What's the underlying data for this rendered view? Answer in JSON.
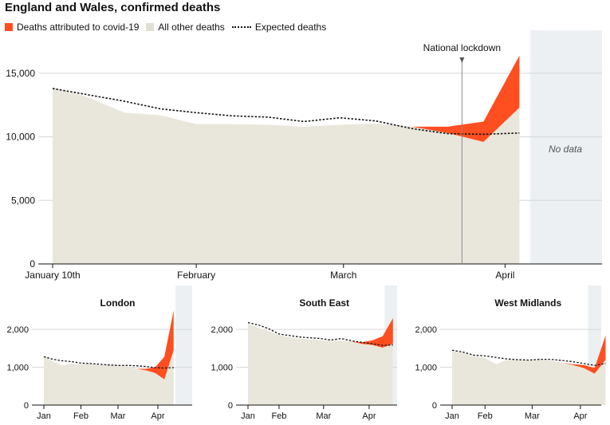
{
  "title": "England and Wales, confirmed deaths",
  "legend": {
    "covid": "Deaths attributed to covid-19",
    "other": "All other deaths",
    "expected": "Expected deaths"
  },
  "colors": {
    "covid": "#ff4e1f",
    "other": "#e9e7dc",
    "nodata": "#edf0f3",
    "grid": "#d6d6d6",
    "axis": "#121212"
  },
  "annotations": {
    "lockdown": "National lockdown",
    "nodata": "No data"
  },
  "chart_data": [
    {
      "type": "area",
      "title": "England and Wales, confirmed deaths",
      "x": [
        "Jan 10",
        "Jan 17",
        "Jan 24",
        "Jan 31",
        "Feb 7",
        "Feb 14",
        "Feb 21",
        "Feb 28",
        "Mar 6",
        "Mar 13",
        "Mar 20",
        "Mar 27",
        "Apr 3",
        "Apr 10"
      ],
      "xticks": [
        {
          "x": 0,
          "label": "January 10th"
        },
        {
          "x": 4,
          "label": "February"
        },
        {
          "x": 8.1,
          "label": "March"
        },
        {
          "x": 12.6,
          "label": "April"
        }
      ],
      "series": [
        {
          "name": "All other deaths",
          "values": [
            13900,
            13100,
            11900,
            11700,
            11000,
            11000,
            10950,
            10800,
            10950,
            11050,
            10800,
            10300,
            9600,
            12300
          ]
        },
        {
          "name": "Deaths attributed to covid-19",
          "values": [
            0,
            0,
            0,
            0,
            0,
            0,
            0,
            0,
            0,
            0,
            0,
            500,
            1600,
            4100
          ]
        },
        {
          "name": "Expected deaths",
          "values": [
            13800,
            13300,
            12800,
            12200,
            11900,
            11650,
            11550,
            11200,
            11500,
            11250,
            10650,
            10250,
            10200,
            10300
          ]
        }
      ],
      "ylim": [
        0,
        17000
      ],
      "yticks": [
        0,
        5000,
        10000,
        15000
      ],
      "lockdown_x": 11.4,
      "nodata_start": 13.3,
      "xmax": 15.3
    },
    {
      "type": "area",
      "title": "London",
      "x": [
        "Jan 3",
        "Jan 10",
        "Jan 17",
        "Jan 24",
        "Jan 31",
        "Feb 7",
        "Feb 14",
        "Feb 21",
        "Feb 28",
        "Mar 6",
        "Mar 13",
        "Mar 20",
        "Mar 27",
        "Apr 3",
        "Apr 10"
      ],
      "xticks": [
        {
          "x": 0,
          "label": "Jan"
        },
        {
          "x": 4,
          "label": "Feb"
        },
        {
          "x": 8,
          "label": "Mar"
        },
        {
          "x": 12.3,
          "label": "Apr"
        }
      ],
      "series": [
        {
          "name": "All other deaths",
          "values": [
            1300,
            1150,
            1050,
            1100,
            1080,
            1100,
            1050,
            1080,
            1050,
            1040,
            960,
            920,
            850,
            680,
            1450
          ]
        },
        {
          "name": "Deaths attributed to covid-19",
          "values": [
            0,
            0,
            0,
            0,
            0,
            0,
            0,
            0,
            0,
            0,
            0,
            40,
            150,
            600,
            1050
          ]
        },
        {
          "name": "Expected deaths",
          "values": [
            1280,
            1210,
            1170,
            1150,
            1110,
            1100,
            1080,
            1060,
            1050,
            1050,
            1040,
            1020,
            990,
            980,
            990
          ]
        }
      ],
      "ylim": [
        0,
        2700
      ],
      "yticks": [
        0,
        1000,
        2000
      ],
      "nodata_start": 14.2,
      "xmax": 16
    },
    {
      "type": "area",
      "title": "South East",
      "x": [
        "Jan 3",
        "Jan 10",
        "Jan 17",
        "Jan 24",
        "Jan 31",
        "Feb 7",
        "Feb 14",
        "Feb 21",
        "Feb 28",
        "Mar 6",
        "Mar 13",
        "Mar 20",
        "Mar 27",
        "Apr 3",
        "Apr 10"
      ],
      "xticks": [
        {
          "x": 0,
          "label": "Jan"
        },
        {
          "x": 3,
          "label": "Feb"
        },
        {
          "x": 7.3,
          "label": "Mar"
        },
        {
          "x": 11.7,
          "label": "Apr"
        }
      ],
      "series": [
        {
          "name": "All other deaths",
          "values": [
            2150,
            2050,
            1950,
            1850,
            1800,
            1760,
            1740,
            1720,
            1700,
            1710,
            1680,
            1620,
            1590,
            1520,
            1620
          ]
        },
        {
          "name": "Deaths attributed to covid-19",
          "values": [
            0,
            0,
            0,
            0,
            0,
            0,
            0,
            0,
            0,
            0,
            0,
            40,
            120,
            300,
            680
          ]
        },
        {
          "name": "Expected deaths",
          "values": [
            2180,
            2120,
            2020,
            1880,
            1840,
            1800,
            1780,
            1760,
            1720,
            1760,
            1700,
            1660,
            1620,
            1580,
            1590
          ]
        }
      ],
      "ylim": [
        0,
        2700
      ],
      "yticks": [
        0,
        1000,
        2000
      ],
      "nodata_start": 13.2,
      "xmax": 14.4
    },
    {
      "type": "area",
      "title": "West Midlands",
      "x": [
        "Jan 3",
        "Jan 10",
        "Jan 17",
        "Jan 24",
        "Jan 31",
        "Feb 7",
        "Feb 14",
        "Feb 21",
        "Feb 28",
        "Mar 6",
        "Mar 13",
        "Mar 20",
        "Mar 27",
        "Apr 3",
        "Apr 10"
      ],
      "xticks": [
        {
          "x": 0,
          "label": "Jan"
        },
        {
          "x": 3,
          "label": "Feb"
        },
        {
          "x": 7.3,
          "label": "Mar"
        },
        {
          "x": 11.7,
          "label": "Apr"
        }
      ],
      "series": [
        {
          "name": "All other deaths",
          "values": [
            1420,
            1380,
            1300,
            1250,
            1080,
            1200,
            1190,
            1180,
            1200,
            1180,
            1120,
            1060,
            980,
            830,
            1200
          ]
        },
        {
          "name": "Deaths attributed to covid-19",
          "values": [
            0,
            0,
            0,
            0,
            0,
            0,
            0,
            0,
            0,
            0,
            0,
            20,
            80,
            150,
            640
          ]
        },
        {
          "name": "Expected deaths",
          "values": [
            1450,
            1400,
            1320,
            1300,
            1260,
            1220,
            1200,
            1190,
            1210,
            1210,
            1180,
            1150,
            1100,
            1050,
            1100
          ]
        }
      ],
      "ylim": [
        0,
        2700
      ],
      "yticks": [
        0,
        1000,
        2000
      ],
      "nodata_start": 12.4,
      "xmax": 13.6
    }
  ]
}
